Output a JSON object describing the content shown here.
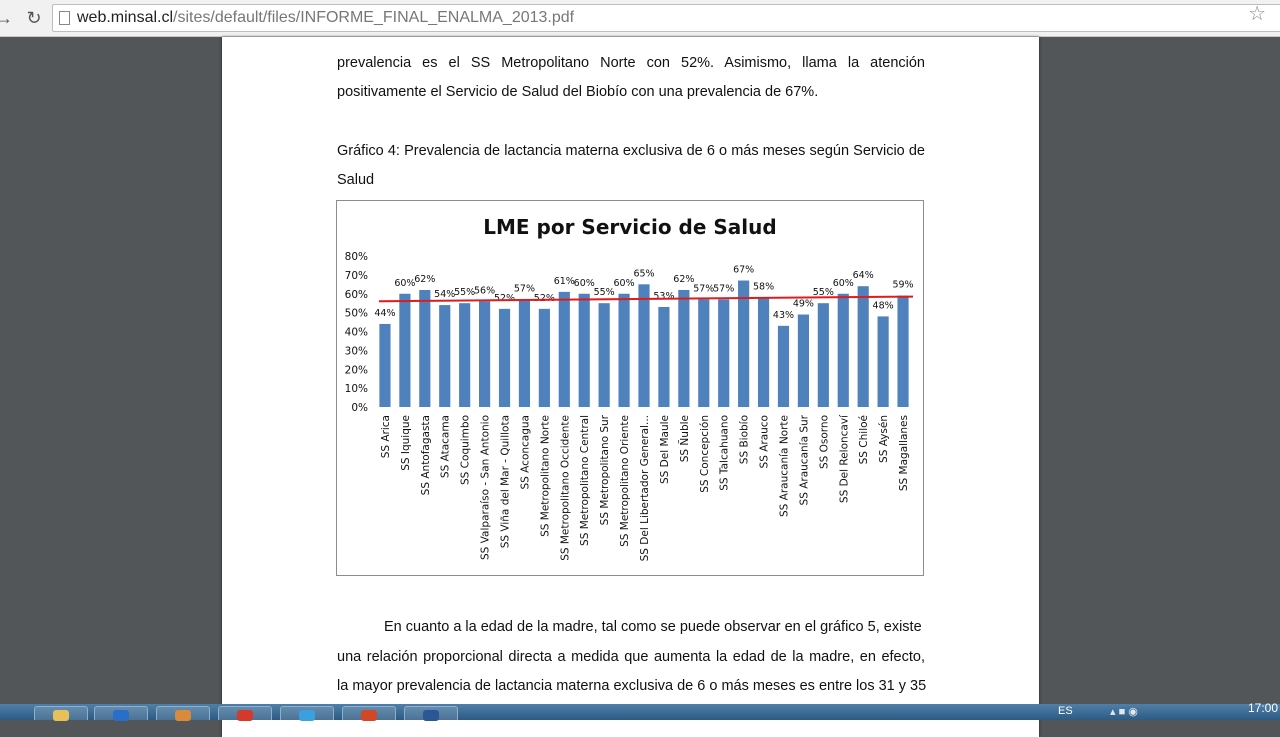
{
  "browser": {
    "url_host": "web.minsal.cl",
    "url_path": "/sites/default/files/INFORME_FINAL_ENALMA_2013.pdf",
    "back_icon": "back-arrow",
    "reload_icon": "reload",
    "bookmark_icon": "star"
  },
  "document": {
    "para1_line1": "prevalencia es el SS Metropolitano Norte con 52%. Asimismo, llama la atención",
    "para1_line2": "positivamente el Servicio de Salud del Biobío con una prevalencia de 67%.",
    "caption_line1": "Gráfico 4: Prevalencia de lactancia materna exclusiva de 6 o más meses según Servicio de",
    "caption_line2": "Salud",
    "para2_line1": "En cuanto a la edad de la madre, tal como se puede observar en el gráfico 5, existe",
    "para2_line2": "una relación proporcional directa a medida que aumenta la edad de la madre, en efecto,",
    "para2_line3": "la mayor prevalencia de lactancia materna exclusiva de 6 o más meses es entre los 31 y 35"
  },
  "chart_data": {
    "type": "bar",
    "title": "LME por Servicio de Salud",
    "categories": [
      "SS Arica",
      "SS Iquique",
      "SS Antofagasta",
      "SS Atacama",
      "SS Coquimbo",
      "SS Valparaíso - San Antonio",
      "SS Viña del Mar - Quillota",
      "SS Aconcagua",
      "SS Metropolitano Norte",
      "SS Metropolitano Occidente",
      "SS Metropolitano Central",
      "SS Metropolitano Sur",
      "SS Metropolitano Oriente",
      "SS Del Libertador General...",
      "SS Del Maule",
      "SS Ñuble",
      "SS Concepción",
      "SS Talcahuano",
      "SS Biobío",
      "SS Arauco",
      "SS Araucanía Norte",
      "SS Araucanía Sur",
      "SS Osorno",
      "SS Del Reloncaví",
      "SS Chiloé",
      "SS Aysén",
      "SS Magallanes"
    ],
    "values": [
      44,
      60,
      62,
      54,
      55,
      56,
      52,
      57,
      52,
      61,
      60,
      55,
      60,
      65,
      53,
      62,
      57,
      57,
      67,
      58,
      43,
      49,
      55,
      60,
      64,
      48,
      59
    ],
    "data_labels": [
      "44%",
      "60%",
      "62%",
      "54%",
      "55%",
      "56%",
      "52%",
      "57%",
      "52%",
      "61%",
      "60%",
      "55%",
      "60%",
      "65%",
      "53%",
      "62%",
      "57%",
      "57%",
      "67%",
      "58%",
      "43%",
      "49%",
      "55%",
      "60%",
      "64%",
      "48%",
      "59%"
    ],
    "y_ticks": [
      "0%",
      "10%",
      "20%",
      "30%",
      "40%",
      "50%",
      "60%",
      "70%",
      "80%"
    ],
    "ylim": [
      0,
      80
    ],
    "reference_line": {
      "from": 56,
      "to": 58.5,
      "color": "#e31a1c"
    },
    "bar_color": "#4f81bd",
    "grid": false,
    "legend": "none"
  },
  "taskbar": {
    "apps": [
      {
        "icon": "folder-icon",
        "color": "#e8c05a"
      },
      {
        "icon": "outlook-icon",
        "color": "#2a6fc7"
      },
      {
        "icon": "media-icon",
        "color": "#d98a3a"
      },
      {
        "icon": "chrome-icon",
        "color": "#d33a2c"
      },
      {
        "icon": "ie-icon",
        "color": "#3aa0e0"
      },
      {
        "icon": "powerpoint-icon",
        "color": "#d24726"
      },
      {
        "icon": "word-icon",
        "color": "#2b5797"
      }
    ],
    "lang": "ES",
    "clock": "17:00"
  }
}
